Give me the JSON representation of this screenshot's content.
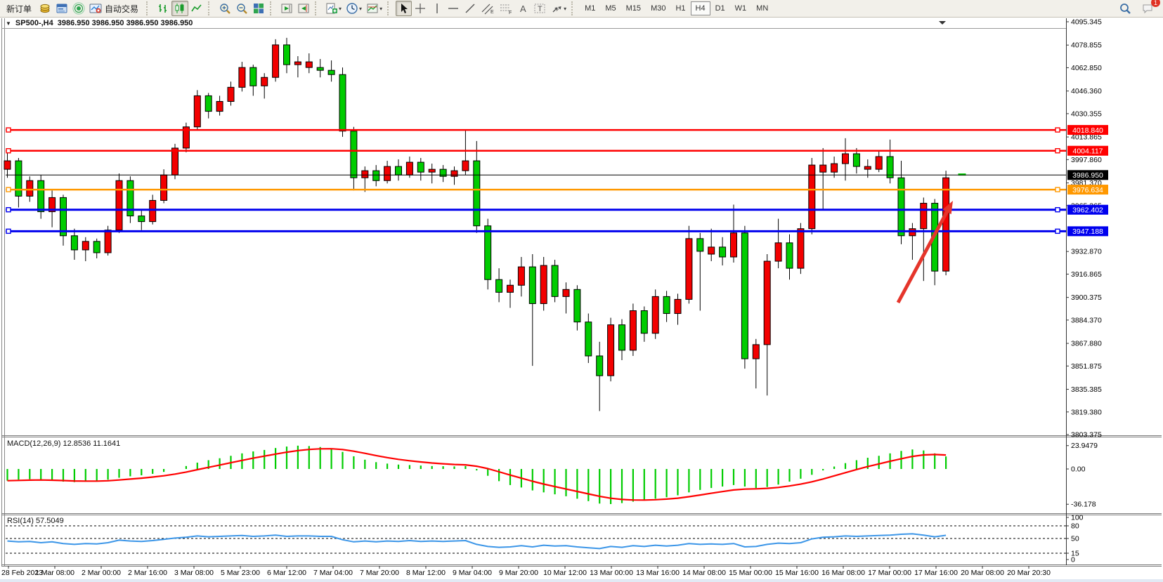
{
  "toolbar": {
    "new_order_label": "新订单",
    "auto_trade_label": "自动交易",
    "timeframes": [
      "M1",
      "M5",
      "M15",
      "M30",
      "H1",
      "H4",
      "D1",
      "W1",
      "MN"
    ],
    "active_timeframe": "H4",
    "chat_badge": "1"
  },
  "window": {
    "title_symbol": "SP500-,H4",
    "title_ohlc": "3986.950 3986.950 3986.950 3986.950"
  },
  "chart_data": {
    "type": "candlestick",
    "symbol": "SP500-",
    "period": "H4",
    "main": {
      "ylim": [
        3803.375,
        4095.345
      ],
      "grid": false,
      "price_ticks": [
        "4095.345",
        "4078.855",
        "4062.850",
        "4046.360",
        "4030.355",
        "4013.865",
        "3997.860",
        "3981.370",
        "3965.365",
        "3932.870",
        "3916.865",
        "3900.375",
        "3884.370",
        "3867.880",
        "3851.875",
        "3835.385",
        "3819.380",
        "3803.375"
      ],
      "colors": {
        "up": "#F20000",
        "down": "#00CC00",
        "wick": "#000000",
        "price_line": "#000000"
      },
      "levels": [
        {
          "value": 4018.84,
          "label": "4018.840",
          "color": "#FF0000"
        },
        {
          "value": 4004.117,
          "label": "4004.117",
          "color": "#FF0000"
        },
        {
          "value": 3976.634,
          "label": "3976.634",
          "color": "#FF9800"
        },
        {
          "value": 3962.402,
          "label": "3962.402",
          "color": "#0000EE"
        },
        {
          "value": 3947.188,
          "label": "3947.188",
          "color": "#0000EE"
        }
      ],
      "current_price": {
        "label": "3986.950",
        "value": 3986.95,
        "color": "#000000"
      },
      "last_bar_dash_value": 3987.3,
      "arrow": {
        "from": [
          1278,
          431
        ],
        "to": [
          1356,
          286
        ],
        "color": "#E5352B"
      },
      "time_labels": [
        "28 Feb 2023",
        "1 Mar 08:00",
        "2 Mar 00:00",
        "2 Mar 16:00",
        "3 Mar 08:00",
        "5 Mar 23:00",
        "6 Mar 12:00",
        "7 Mar 04:00",
        "7 Mar 20:00",
        "8 Mar 12:00",
        "9 Mar 04:00",
        "9 Mar 20:00",
        "10 Mar 12:00",
        "13 Mar 00:00",
        "13 Mar 16:00",
        "14 Mar 08:00",
        "15 Mar 00:00",
        "15 Mar 16:00",
        "16 Mar 08:00",
        "17 Mar 00:00",
        "17 Mar 16:00",
        "20 Mar 08:00",
        "20 Mar 20:30"
      ],
      "candles": [
        [
          3991,
          4003,
          3985,
          3997,
          "r"
        ],
        [
          3997,
          3999,
          3964,
          3972,
          "g"
        ],
        [
          3972,
          3986,
          3968,
          3983,
          "r"
        ],
        [
          3983,
          3987,
          3956,
          3961,
          "g"
        ],
        [
          3961,
          3976,
          3950,
          3971,
          "r"
        ],
        [
          3971,
          3973,
          3937,
          3944,
          "g"
        ],
        [
          3944,
          3949,
          3927,
          3934,
          "g"
        ],
        [
          3934,
          3943,
          3926,
          3940,
          "r"
        ],
        [
          3940,
          3942,
          3928,
          3932,
          "g"
        ],
        [
          3932,
          3951,
          3930,
          3948,
          "r"
        ],
        [
          3948,
          3988,
          3946,
          3983,
          "r"
        ],
        [
          3983,
          3986,
          3953,
          3958,
          "g"
        ],
        [
          3958,
          3963,
          3948,
          3954,
          "g"
        ],
        [
          3954,
          3973,
          3952,
          3969,
          "r"
        ],
        [
          3969,
          3991,
          3967,
          3987,
          "r"
        ],
        [
          3987,
          4009,
          3984,
          4006,
          "r"
        ],
        [
          4006,
          4024,
          4003,
          4021,
          "r"
        ],
        [
          4021,
          4047,
          4019,
          4043,
          "r"
        ],
        [
          4043,
          4045,
          4027,
          4032,
          "g"
        ],
        [
          4032,
          4043,
          4029,
          4039,
          "r"
        ],
        [
          4039,
          4053,
          4036,
          4049,
          "r"
        ],
        [
          4049,
          4067,
          4046,
          4063,
          "r"
        ],
        [
          4063,
          4065,
          4043,
          4050,
          "g"
        ],
        [
          4050,
          4059,
          4041,
          4056,
          "r"
        ],
        [
          4056,
          4083,
          4053,
          4079,
          "r"
        ],
        [
          4079,
          4084,
          4059,
          4065,
          "g"
        ],
        [
          4065,
          4071,
          4056,
          4067,
          "r"
        ],
        [
          4067,
          4073,
          4059,
          4063,
          "r"
        ],
        [
          4063,
          4069,
          4056,
          4061,
          "g"
        ],
        [
          4061,
          4068,
          4053,
          4058,
          "g"
        ],
        [
          4058,
          4063,
          4014,
          4018,
          "g"
        ],
        [
          4018,
          4021,
          3976,
          3985,
          "g"
        ],
        [
          3985,
          3993,
          3975,
          3990,
          "r"
        ],
        [
          3990,
          3994,
          3979,
          3983,
          "g"
        ],
        [
          3983,
          3997,
          3981,
          3993,
          "r"
        ],
        [
          3993,
          3998,
          3983,
          3987,
          "g"
        ],
        [
          3987,
          4000,
          3985,
          3996,
          "r"
        ],
        [
          3996,
          3999,
          3983,
          3989,
          "g"
        ],
        [
          3989,
          3995,
          3981,
          3991,
          "r"
        ],
        [
          3991,
          3994,
          3982,
          3986,
          "g"
        ],
        [
          3986,
          3993,
          3980,
          3990,
          "r"
        ],
        [
          3990,
          4019,
          3987,
          3997,
          "r"
        ],
        [
          3997,
          4011,
          3946,
          3951,
          "g"
        ],
        [
          3951,
          3956,
          3906,
          3913,
          "g"
        ],
        [
          3913,
          3921,
          3897,
          3904,
          "g"
        ],
        [
          3904,
          3913,
          3893,
          3909,
          "r"
        ],
        [
          3909,
          3929,
          3901,
          3922,
          "r"
        ],
        [
          3922,
          3931,
          3852,
          3896,
          "g"
        ],
        [
          3896,
          3929,
          3891,
          3923,
          "r"
        ],
        [
          3923,
          3927,
          3897,
          3901,
          "g"
        ],
        [
          3901,
          3911,
          3889,
          3906,
          "r"
        ],
        [
          3906,
          3909,
          3877,
          3883,
          "g"
        ],
        [
          3883,
          3889,
          3854,
          3859,
          "g"
        ],
        [
          3859,
          3869,
          3820,
          3845,
          "g"
        ],
        [
          3845,
          3886,
          3841,
          3881,
          "r"
        ],
        [
          3881,
          3885,
          3856,
          3863,
          "g"
        ],
        [
          3863,
          3896,
          3859,
          3891,
          "r"
        ],
        [
          3891,
          3894,
          3869,
          3875,
          "g"
        ],
        [
          3875,
          3906,
          3871,
          3901,
          "r"
        ],
        [
          3901,
          3905,
          3883,
          3889,
          "g"
        ],
        [
          3889,
          3903,
          3881,
          3899,
          "r"
        ],
        [
          3899,
          3951,
          3896,
          3942,
          "r"
        ],
        [
          3942,
          3946,
          3891,
          3933,
          "g"
        ],
        [
          3931,
          3949,
          3926,
          3936,
          "r"
        ],
        [
          3936,
          3943,
          3923,
          3929,
          "g"
        ],
        [
          3929,
          3966,
          3925,
          3946,
          "r"
        ],
        [
          3946,
          3951,
          3850,
          3857,
          "g"
        ],
        [
          3857,
          3871,
          3836,
          3867,
          "r"
        ],
        [
          3867,
          3931,
          3831,
          3926,
          "r"
        ],
        [
          3926,
          3956,
          3921,
          3939,
          "r"
        ],
        [
          3939,
          3945,
          3913,
          3921,
          "g"
        ],
        [
          3921,
          3953,
          3917,
          3949,
          "r"
        ],
        [
          3949,
          3999,
          3945,
          3994,
          "r"
        ],
        [
          3994,
          4006,
          3963,
          3989,
          "r"
        ],
        [
          3989,
          4000,
          3985,
          3995,
          "r"
        ],
        [
          3995,
          4013,
          3983,
          4002,
          "r"
        ],
        [
          4002,
          4006,
          3988,
          3993,
          "g"
        ],
        [
          3993,
          3998,
          3985,
          3991,
          "r"
        ],
        [
          3991,
          4004,
          3989,
          4000,
          "r"
        ],
        [
          4000,
          4012,
          3981,
          3985,
          "g"
        ],
        [
          3985,
          3997,
          3938,
          3944,
          "g"
        ],
        [
          3944,
          3953,
          3927,
          3949,
          "r"
        ],
        [
          3949,
          3971,
          3912,
          3967,
          "r"
        ],
        [
          3967,
          3970,
          3909,
          3919,
          "g"
        ],
        [
          3919,
          3990,
          3916,
          3985,
          "r"
        ]
      ]
    },
    "macd": {
      "label": "MACD(12,26,9) 12.8536 11.1641",
      "params": "12,26,9",
      "value_main": "12.8536",
      "value_signal": "11.1641",
      "axis_ticks": [
        "23.9479",
        "0.00",
        "-36.178"
      ],
      "colors": {
        "histogram": "#00CC00",
        "signal": "#FF0000"
      },
      "values": [
        -12,
        -11,
        -10.5,
        -11,
        -12,
        -13,
        -13.5,
        -13,
        -12.5,
        -11,
        -9,
        -7.5,
        -6.5,
        -5,
        -3,
        0,
        3,
        6.5,
        9,
        11,
        13.5,
        16,
        18,
        19.5,
        21.5,
        23,
        23.9,
        23.5,
        22.5,
        21,
        17.5,
        13,
        9.5,
        7,
        5.5,
        4.5,
        4,
        3.5,
        3,
        2.8,
        2.6,
        3,
        -1.5,
        -7,
        -12.5,
        -16.5,
        -19,
        -22,
        -24,
        -26,
        -28,
        -30.5,
        -33,
        -35.5,
        -36,
        -35,
        -33.5,
        -32,
        -30.5,
        -29,
        -27,
        -24,
        -21.5,
        -19.5,
        -18,
        -16.5,
        -18,
        -19.5,
        -18.5,
        -16,
        -13,
        -10,
        -6,
        -1.5,
        2.5,
        6,
        9,
        11.5,
        13.5,
        16,
        18.5,
        20,
        19,
        16,
        12.85
      ]
    },
    "rsi": {
      "label": "RSI(14) 57.5049",
      "params": "14",
      "value": "57.5049",
      "axis_labels": [
        "100",
        "80",
        "50",
        "15",
        "0"
      ],
      "levels": [
        80,
        50,
        15
      ],
      "color": "#3C96E8",
      "values": [
        44,
        42,
        43,
        40,
        42,
        38,
        36,
        38,
        37,
        40,
        46,
        44,
        43,
        45,
        48,
        51,
        53,
        56,
        54,
        55,
        56,
        57,
        55,
        56,
        58,
        55,
        56,
        56,
        55,
        55,
        47,
        42,
        44,
        42,
        44,
        43,
        45,
        43,
        44,
        43,
        44,
        45,
        36,
        31,
        29,
        30,
        33,
        30,
        34,
        32,
        33,
        30,
        28,
        26,
        31,
        29,
        33,
        31,
        34,
        32,
        34,
        38,
        36,
        37,
        36,
        38,
        30,
        31,
        36,
        39,
        38,
        40,
        49,
        53,
        54,
        56,
        55,
        56,
        57,
        58,
        60,
        61,
        58,
        54,
        57.5
      ]
    }
  }
}
